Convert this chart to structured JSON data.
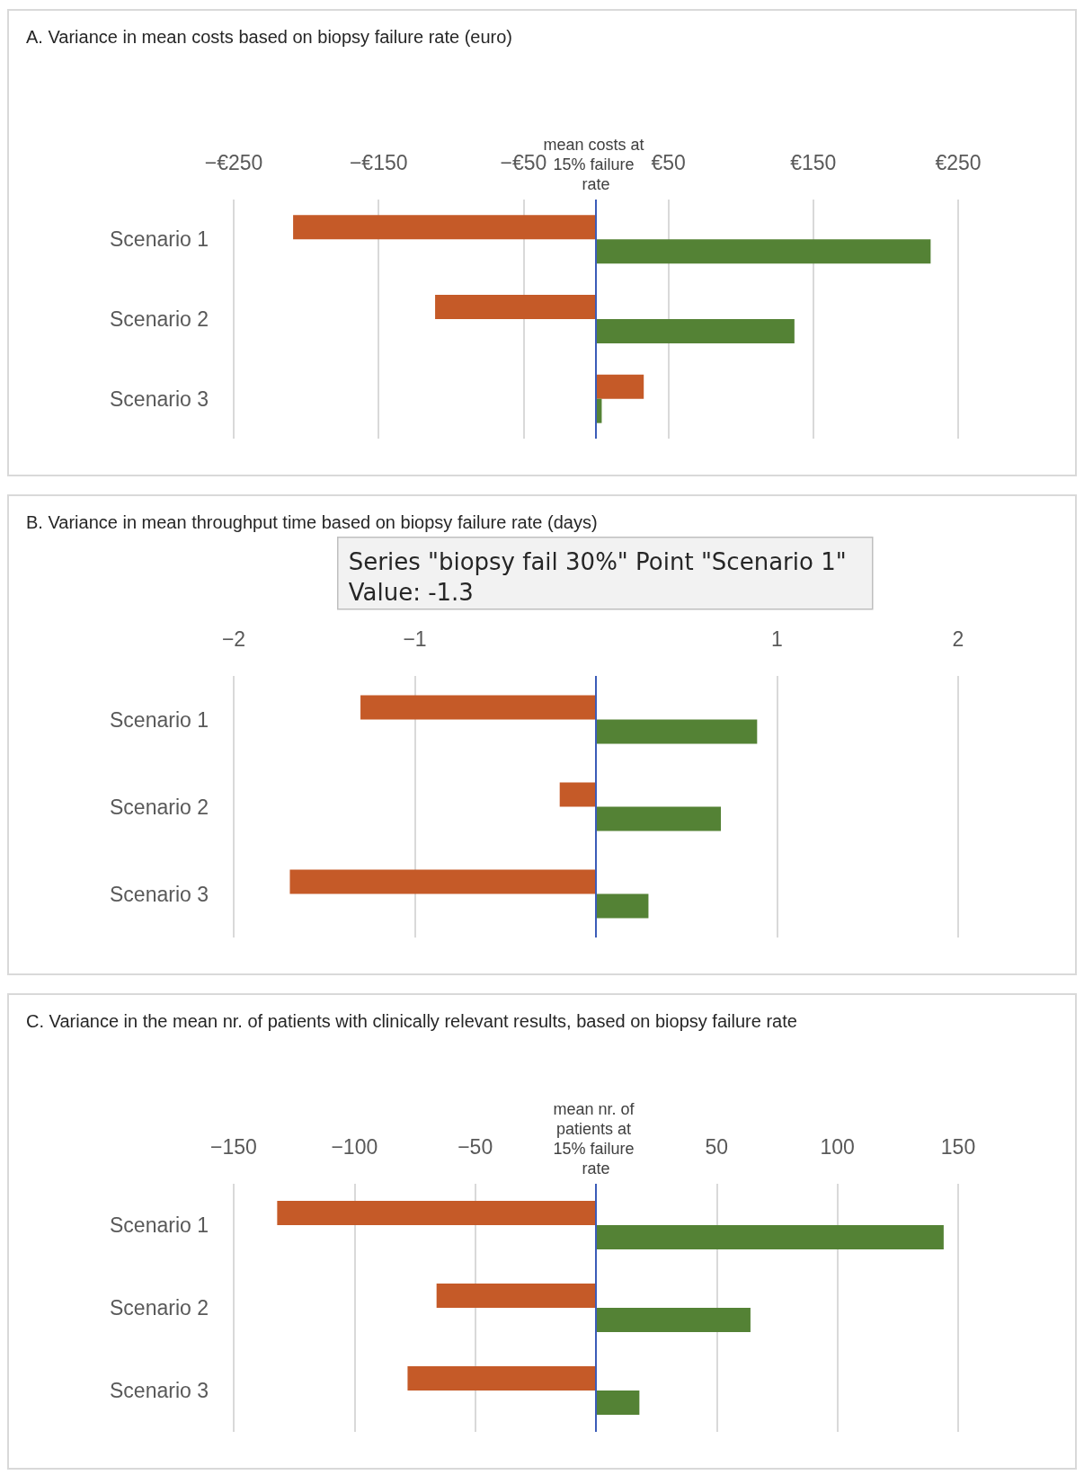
{
  "chart_data": [
    {
      "type": "bar",
      "orientation": "horizontal",
      "title": "A. Variance in mean costs based on biopsy failure rate (euro)",
      "categories": [
        "Scenario 1",
        "Scenario 2",
        "Scenario 3"
      ],
      "series": [
        {
          "color": "#c55a28",
          "values": [
            -209,
            -111,
            33
          ]
        },
        {
          "color": "#548235",
          "values": [
            231,
            137,
            4
          ]
        }
      ],
      "xlim": [
        -250,
        250
      ],
      "xticks": [
        {
          "value": -250,
          "label": "−€250"
        },
        {
          "value": -150,
          "label": "−€150"
        },
        {
          "value": -50,
          "label": "−€50"
        },
        {
          "value": 50,
          "label": "€50"
        },
        {
          "value": 150,
          "label": "€150"
        },
        {
          "value": 250,
          "label": "€250"
        }
      ],
      "grid": "x",
      "ref_lines": [
        {
          "axis": "x",
          "value": 0,
          "label": "mean costs at 15% failure rate",
          "color": "#3b5cb8"
        }
      ]
    },
    {
      "type": "bar",
      "orientation": "horizontal",
      "title": "B. Variance in mean throughput time based on biopsy failure rate (days)",
      "categories": [
        "Scenario 1",
        "Scenario 2",
        "Scenario 3"
      ],
      "series": [
        {
          "color": "#c55a28",
          "values": [
            -1.3,
            -0.2,
            -1.69
          ]
        },
        {
          "color": "#548235",
          "values": [
            0.89,
            0.69,
            0.29
          ]
        }
      ],
      "xlim": [
        -2,
        2
      ],
      "xticks": [
        {
          "value": -2,
          "label": "−2"
        },
        {
          "value": -1,
          "label": "−1"
        },
        {
          "value": 1,
          "label": "1"
        },
        {
          "value": 2,
          "label": "2"
        }
      ],
      "grid": "x",
      "ref_lines": [
        {
          "axis": "x",
          "value": 0,
          "color": "#3b5cb8"
        }
      ],
      "annotations": [
        "Series \"biopsy fail 30%\" Point \"Scenario 1\"",
        "Value: -1.3"
      ]
    },
    {
      "type": "bar",
      "orientation": "horizontal",
      "title": "C. Variance in the mean nr. of patients with clinically relevant results, based on biopsy failure rate",
      "categories": [
        "Scenario 1",
        "Scenario 2",
        "Scenario 3"
      ],
      "series": [
        {
          "color": "#c55a28",
          "values": [
            -132,
            -66,
            -78
          ]
        },
        {
          "color": "#548235",
          "values": [
            144,
            64,
            18
          ]
        }
      ],
      "xlim": [
        -150,
        150
      ],
      "xticks": [
        {
          "value": -150,
          "label": "−150"
        },
        {
          "value": -100,
          "label": "−100"
        },
        {
          "value": -50,
          "label": "−50"
        },
        {
          "value": 50,
          "label": "50"
        },
        {
          "value": 100,
          "label": "100"
        },
        {
          "value": 150,
          "label": "150"
        }
      ],
      "grid": "x",
      "ref_lines": [
        {
          "axis": "x",
          "value": 0,
          "label": "mean nr. of patients at 15% failure rate",
          "color": "#3b5cb8"
        }
      ]
    }
  ]
}
